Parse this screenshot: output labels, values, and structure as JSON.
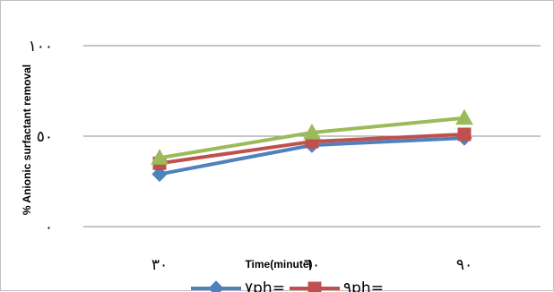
{
  "chart_data": {
    "type": "line",
    "title": "",
    "xlabel": "Time(minute)",
    "ylabel": "% Anionic surfactant removal",
    "categories": [
      "٣٠",
      "٦٠",
      "٩٠"
    ],
    "y_ticks": [
      "٠",
      "٥٠",
      "١٠٠"
    ],
    "y_tick_values": [
      0,
      50,
      100
    ],
    "ylim": [
      0,
      100
    ],
    "grid": "horizontal",
    "legend_position": "bottom",
    "series": [
      {
        "name": "٧ph=",
        "values": [
          29,
          45,
          49
        ],
        "color": "#4f81bd",
        "marker": "diamond"
      },
      {
        "name": "٩ph=",
        "values": [
          35,
          47,
          51
        ],
        "color": "#c0504d",
        "marker": "square"
      },
      {
        "name": "",
        "values": [
          38,
          52,
          60
        ],
        "color": "#9bbb59",
        "marker": "triangle"
      }
    ]
  }
}
